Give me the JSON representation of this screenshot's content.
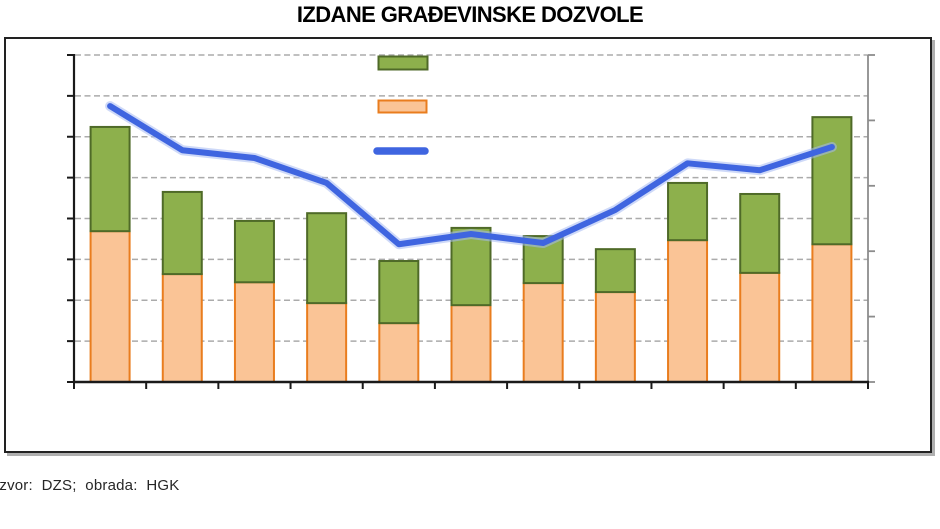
{
  "title": "IZDANE GRAĐEVINSKE DOZVOLE",
  "source_note": "Izvor:  DZS;  obrada:  HGK",
  "colors": {
    "bar_orange_fill": "#FAC496",
    "bar_orange_border": "#E97D1E",
    "bar_green_fill": "#8DB04C",
    "bar_green_border": "#4F6A28",
    "line_blue": "#3F65E0",
    "line_blue_halo": "#A6B9F2",
    "gridline_gray": "#ABABAB",
    "axis_black": "#1A1A1A",
    "right_axis_gray": "#8C8C8C",
    "frame_border": "#222222"
  },
  "chart_data": {
    "type": "bar",
    "subtype": "stacked-bars-with-line-overlay",
    "title": "IZDANE GRAĐEVINSKE DOZVOLE",
    "categories": [
      "",
      "",
      "",
      "",
      "",
      "",
      "",
      "",
      "",
      "",
      ""
    ],
    "series": [
      {
        "name": "",
        "role": "bar-lower-segment",
        "swatch": "orange-box",
        "values": [
          3.69,
          2.64,
          2.44,
          1.93,
          1.44,
          1.88,
          2.42,
          2.2,
          3.47,
          2.67,
          3.37
        ]
      },
      {
        "name": "",
        "role": "bar-upper-segment",
        "swatch": "green-box",
        "values": [
          2.55,
          2.01,
          1.5,
          2.2,
          1.52,
          1.89,
          1.15,
          1.05,
          1.4,
          1.93,
          3.11
        ]
      },
      {
        "name": "",
        "role": "line",
        "swatch": "blue-line",
        "values": [
          6.75,
          5.67,
          5.48,
          4.87,
          3.37,
          3.62,
          3.4,
          4.21,
          5.35,
          5.18,
          5.75
        ]
      }
    ],
    "xlabel": "",
    "ylabel": "",
    "left_axis": {
      "range": [
        0,
        8
      ],
      "tick_count": 9,
      "tick_labels_visible": false
    },
    "right_axis": {
      "tick_count": 6,
      "tick_labels_visible": false
    },
    "x_axis": {
      "tick_count": 12,
      "tick_labels_visible": false
    },
    "grid": "horizontal-dashed",
    "legend": {
      "position": "top-center-stacked",
      "entries": [
        {
          "swatch": "green-box",
          "label": ""
        },
        {
          "swatch": "orange-box",
          "label": ""
        },
        {
          "swatch": "blue-line",
          "label": ""
        }
      ]
    },
    "value_units": "left-axis gridline intervals (no numeric labels shown on chart)"
  }
}
